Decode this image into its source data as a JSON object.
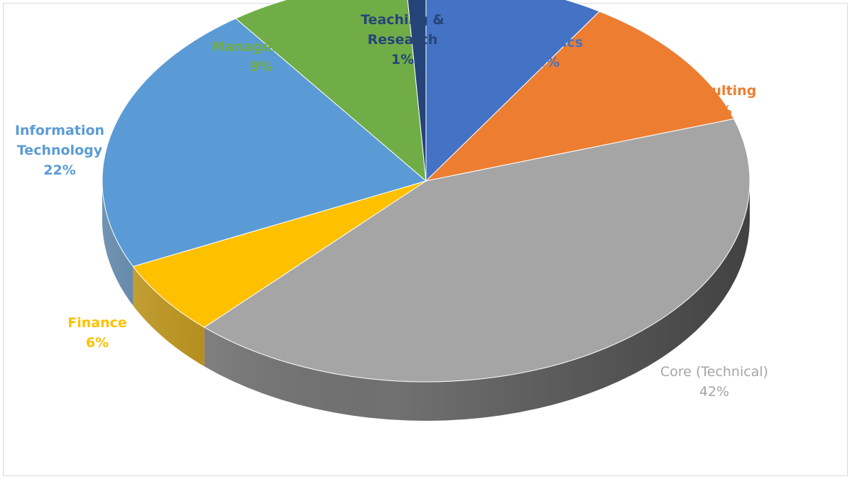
{
  "chart_data": {
    "type": "pie",
    "style": "3d",
    "title": "",
    "slices": [
      {
        "label": "Analytics",
        "value": 9,
        "percent_label": "9%",
        "color": "#4472C4",
        "label_color": "#4472C4"
      },
      {
        "label": "Consulting",
        "value": 11,
        "percent_label": "11%",
        "color": "#ED7D31",
        "label_color": "#ED7D31"
      },
      {
        "label": "Core (Technical)",
        "value": 42,
        "percent_label": "42%",
        "color": "#A5A5A5",
        "label_color": "#A5A5A5"
      },
      {
        "label": "Finance",
        "value": 6,
        "percent_label": "6%",
        "color": "#FFC000",
        "label_color": "#FFC000"
      },
      {
        "label": "Information Technology",
        "value": 22,
        "percent_label": "22%",
        "color": "#5B9BD5",
        "label_color": "#5B9BD5"
      },
      {
        "label": "Management",
        "value": 9,
        "percent_label": "9%",
        "color": "#70AD47",
        "label_color": "#70AD47"
      },
      {
        "label": "Teaching & Research",
        "value": 1,
        "percent_label": "1%",
        "color": "#264478",
        "label_color": "#264478"
      }
    ],
    "legend": "none",
    "data_labels": "outside"
  }
}
